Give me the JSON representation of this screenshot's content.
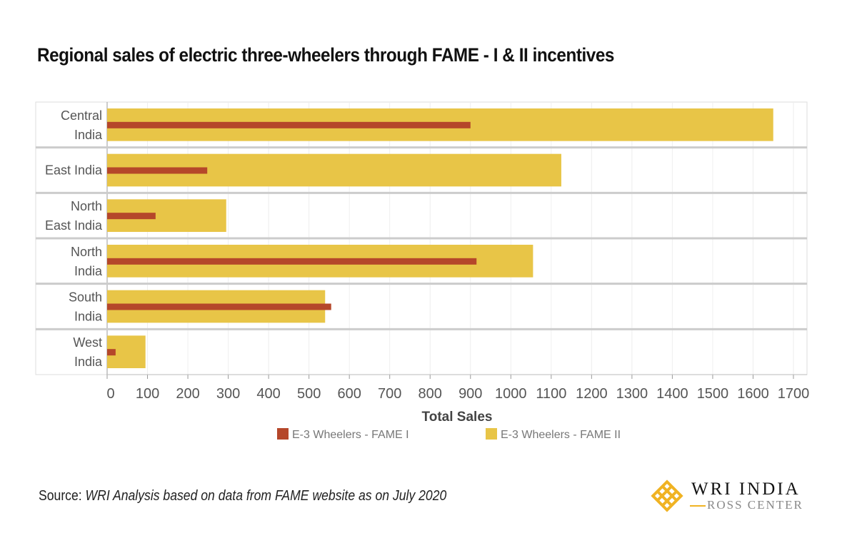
{
  "title": "Regional sales of electric three-wheelers through FAME - I & II incentives",
  "source_prefix": "Source: ",
  "source_text": "WRI Analysis based on data from FAME website as on July 2020",
  "logo": {
    "line1": "WRI INDIA",
    "line2": "ROSS CENTER"
  },
  "chart_data": {
    "type": "bar",
    "orientation": "horizontal",
    "categories": [
      [
        "Central",
        "India"
      ],
      [
        "East India"
      ],
      [
        "North",
        "East India"
      ],
      [
        "North",
        "India"
      ],
      [
        "South",
        "India"
      ],
      [
        "West",
        "India"
      ]
    ],
    "series": [
      {
        "name": "E-3 Wheelers - FAME II",
        "color": "#E8C547",
        "values": [
          1650,
          1125,
          295,
          1055,
          540,
          95
        ]
      },
      {
        "name": "E-3 Wheelers - FAME I",
        "color": "#B5472A",
        "values": [
          900,
          248,
          120,
          915,
          555,
          21
        ]
      }
    ],
    "xlabel": "Total Sales",
    "xlim": [
      0,
      1700
    ],
    "xticks": [
      0,
      100,
      200,
      300,
      400,
      500,
      600,
      700,
      800,
      900,
      1000,
      1100,
      1200,
      1300,
      1400,
      1500,
      1600,
      1700
    ],
    "grid": true,
    "legend_position": "bottom"
  }
}
